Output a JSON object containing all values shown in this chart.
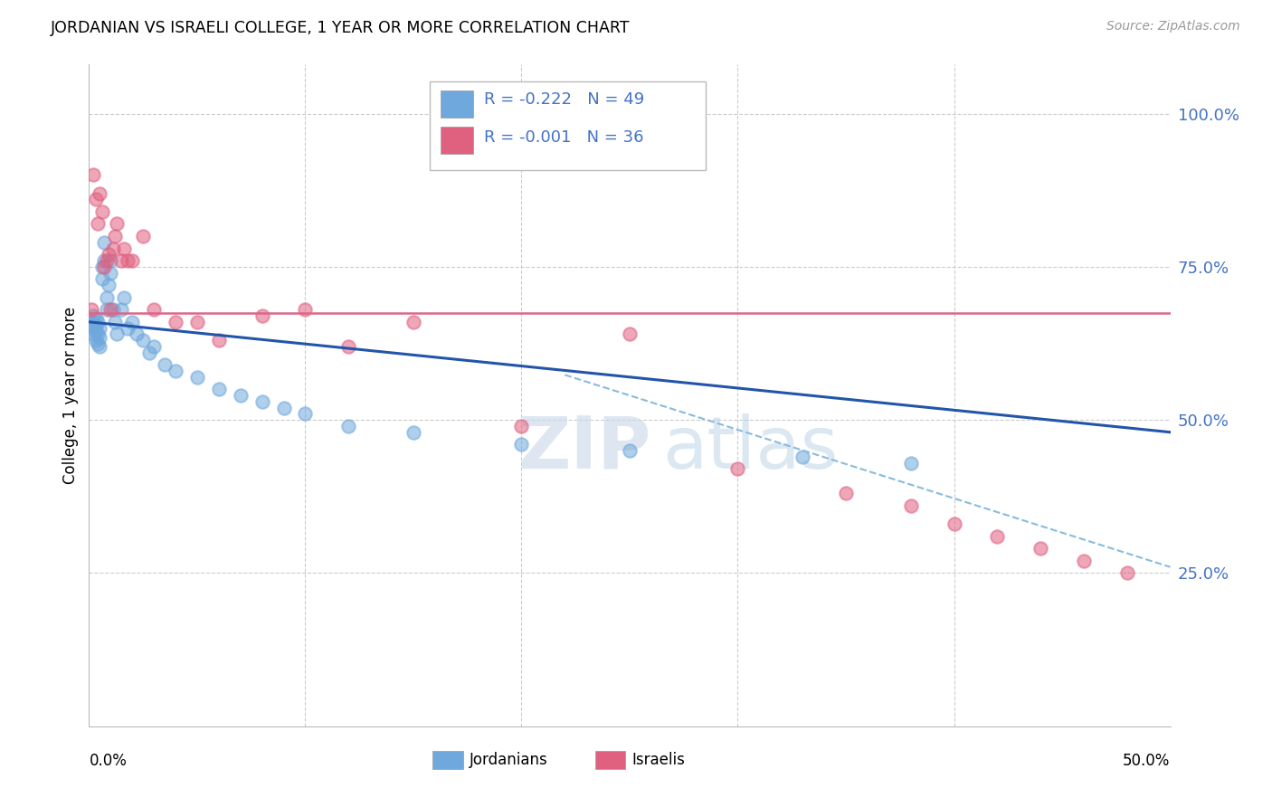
{
  "title": "JORDANIAN VS ISRAELI COLLEGE, 1 YEAR OR MORE CORRELATION CHART",
  "source": "Source: ZipAtlas.com",
  "ylabel": "College, 1 year or more",
  "xlim": [
    0.0,
    0.5
  ],
  "ylim": [
    0.0,
    1.08
  ],
  "legend_r_blue": "-0.222",
  "legend_n_blue": "49",
  "legend_r_pink": "-0.001",
  "legend_n_pink": "36",
  "blue_scatter_color": "#6fa8dc",
  "pink_scatter_color": "#e06080",
  "trendline_blue_solid": "#2255aa",
  "trendline_dashed": "#88bbdd",
  "trendline_pink_solid": "#dd6688",
  "grid_color": "#cccccc",
  "right_tick_color": "#4472c4",
  "jordanians_x": [
    0.001,
    0.001,
    0.002,
    0.002,
    0.002,
    0.003,
    0.003,
    0.003,
    0.003,
    0.004,
    0.004,
    0.004,
    0.005,
    0.005,
    0.005,
    0.006,
    0.006,
    0.007,
    0.007,
    0.008,
    0.008,
    0.009,
    0.01,
    0.01,
    0.011,
    0.012,
    0.013,
    0.015,
    0.016,
    0.018,
    0.02,
    0.022,
    0.025,
    0.028,
    0.03,
    0.035,
    0.04,
    0.05,
    0.06,
    0.07,
    0.08,
    0.09,
    0.1,
    0.12,
    0.15,
    0.2,
    0.25,
    0.33,
    0.38
  ],
  "jordanians_y": [
    0.655,
    0.66,
    0.64,
    0.65,
    0.67,
    0.63,
    0.645,
    0.655,
    0.665,
    0.625,
    0.64,
    0.66,
    0.62,
    0.635,
    0.65,
    0.73,
    0.75,
    0.76,
    0.79,
    0.68,
    0.7,
    0.72,
    0.74,
    0.76,
    0.68,
    0.66,
    0.64,
    0.68,
    0.7,
    0.65,
    0.66,
    0.64,
    0.63,
    0.61,
    0.62,
    0.59,
    0.58,
    0.57,
    0.55,
    0.54,
    0.53,
    0.52,
    0.51,
    0.49,
    0.48,
    0.46,
    0.45,
    0.44,
    0.43
  ],
  "israelis_x": [
    0.001,
    0.002,
    0.003,
    0.004,
    0.005,
    0.006,
    0.007,
    0.008,
    0.009,
    0.01,
    0.011,
    0.012,
    0.013,
    0.015,
    0.016,
    0.018,
    0.02,
    0.025,
    0.03,
    0.04,
    0.05,
    0.06,
    0.08,
    0.1,
    0.12,
    0.15,
    0.2,
    0.25,
    0.3,
    0.35,
    0.38,
    0.4,
    0.42,
    0.44,
    0.46,
    0.48
  ],
  "israelis_y": [
    0.68,
    0.9,
    0.86,
    0.82,
    0.87,
    0.84,
    0.75,
    0.76,
    0.77,
    0.68,
    0.78,
    0.8,
    0.82,
    0.76,
    0.78,
    0.76,
    0.76,
    0.8,
    0.68,
    0.66,
    0.66,
    0.63,
    0.67,
    0.68,
    0.62,
    0.66,
    0.49,
    0.64,
    0.42,
    0.38,
    0.36,
    0.33,
    0.31,
    0.29,
    0.27,
    0.25
  ]
}
